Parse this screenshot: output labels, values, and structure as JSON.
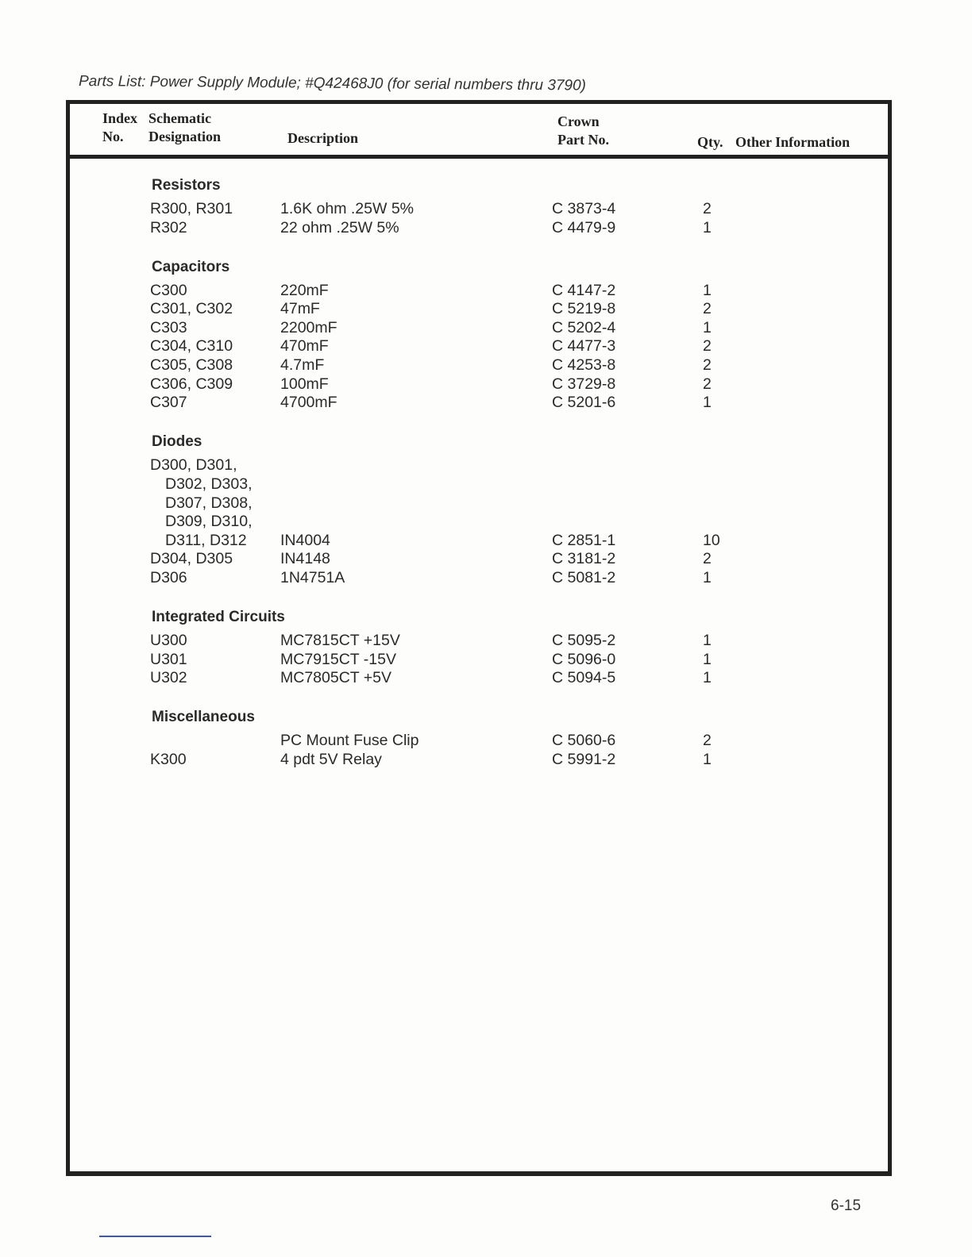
{
  "title": "Parts List: Power Supply Module; #Q42468J0 (for serial numbers thru 3790)",
  "header": {
    "index_l1": "Index",
    "index_l2": "No.",
    "schem_l1": "Schematic",
    "schem_l2": "Designation",
    "description": "Description",
    "crown_l1": "Crown",
    "crown_l2": "Part No.",
    "qty": "Qty.",
    "other": "Other Information"
  },
  "sections": [
    {
      "heading": "Resistors",
      "items": [
        {
          "designation": [
            "R300, R301"
          ],
          "description": "1.6K ohm .25W 5%",
          "part": "C 3873-4",
          "qty": "2"
        },
        {
          "designation": [
            "R302"
          ],
          "description": "22 ohm .25W 5%",
          "part": "C 4479-9",
          "qty": "1"
        }
      ]
    },
    {
      "heading": "Capacitors",
      "items": [
        {
          "designation": [
            "C300"
          ],
          "description": "220mF",
          "part": "C 4147-2",
          "qty": "1"
        },
        {
          "designation": [
            "C301, C302"
          ],
          "description": "47mF",
          "part": "C 5219-8",
          "qty": "2"
        },
        {
          "designation": [
            "C303"
          ],
          "description": "2200mF",
          "part": "C 5202-4",
          "qty": "1"
        },
        {
          "designation": [
            "C304, C310"
          ],
          "description": "470mF",
          "part": "C 4477-3",
          "qty": "2"
        },
        {
          "designation": [
            "C305, C308"
          ],
          "description": "4.7mF",
          "part": "C 4253-8",
          "qty": "2"
        },
        {
          "designation": [
            "C306, C309"
          ],
          "description": "100mF",
          "part": "C 3729-8",
          "qty": "2"
        },
        {
          "designation": [
            "C307"
          ],
          "description": "4700mF",
          "part": "C 5201-6",
          "qty": "1"
        }
      ]
    },
    {
      "heading": "Diodes",
      "items": [
        {
          "designation": [
            "D300, D301,",
            "  D302, D303,",
            "  D307, D308,",
            "  D309, D310,",
            "  D311, D312"
          ],
          "description": "IN4004",
          "part": "C 2851-1",
          "qty": "10"
        },
        {
          "designation": [
            "D304, D305"
          ],
          "description": "IN4148",
          "part": "C 3181-2",
          "qty": "2"
        },
        {
          "designation": [
            "D306"
          ],
          "description": "1N4751A",
          "part": "C 5081-2",
          "qty": "1"
        }
      ]
    },
    {
      "heading": "Integrated Circuits",
      "items": [
        {
          "designation": [
            "U300"
          ],
          "description": "MC7815CT +15V",
          "part": "C 5095-2",
          "qty": "1"
        },
        {
          "designation": [
            "U301"
          ],
          "description": "MC7915CT -15V",
          "part": "C 5096-0",
          "qty": "1"
        },
        {
          "designation": [
            "U302"
          ],
          "description": "MC7805CT +5V",
          "part": "C 5094-5",
          "qty": "1"
        }
      ]
    },
    {
      "heading": "Miscellaneous",
      "items": [
        {
          "designation": [
            ""
          ],
          "description": "PC Mount Fuse Clip",
          "part": "C 5060-6",
          "qty": "2"
        },
        {
          "designation": [
            "K300"
          ],
          "description": "4 pdt 5V Relay",
          "part": "C 5991-2",
          "qty": "1"
        }
      ]
    }
  ],
  "page_number": "6-15"
}
